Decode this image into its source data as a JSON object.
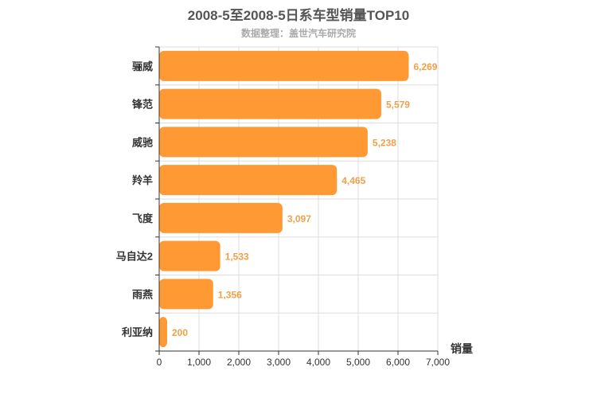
{
  "chart_data": {
    "type": "bar",
    "orientation": "horizontal",
    "title": "2008-5至2008-5日系车型销量TOP10",
    "subtitle": "数据整理：盖世汽车研究院",
    "categories": [
      "骊威",
      "锋范",
      "威驰",
      "羚羊",
      "飞度",
      "马自达2",
      "雨燕",
      "利亚纳"
    ],
    "values": [
      6269,
      5579,
      5238,
      4465,
      3097,
      1533,
      1356,
      200
    ],
    "value_labels": [
      "6,269",
      "5,579",
      "5,238",
      "4,465",
      "3,097",
      "1,533",
      "1,356",
      "200"
    ],
    "xlabel": "销量",
    "ylabel": "",
    "xlim": [
      0,
      7000
    ],
    "x_ticks": [
      0,
      1000,
      2000,
      3000,
      4000,
      5000,
      6000,
      7000
    ],
    "x_tick_labels": [
      "0",
      "1,000",
      "2,000",
      "3,000",
      "4,000",
      "5,000",
      "6,000",
      "7,000"
    ],
    "grid": true,
    "bar_color": "#ff9933",
    "label_color": "#f0a04b"
  }
}
